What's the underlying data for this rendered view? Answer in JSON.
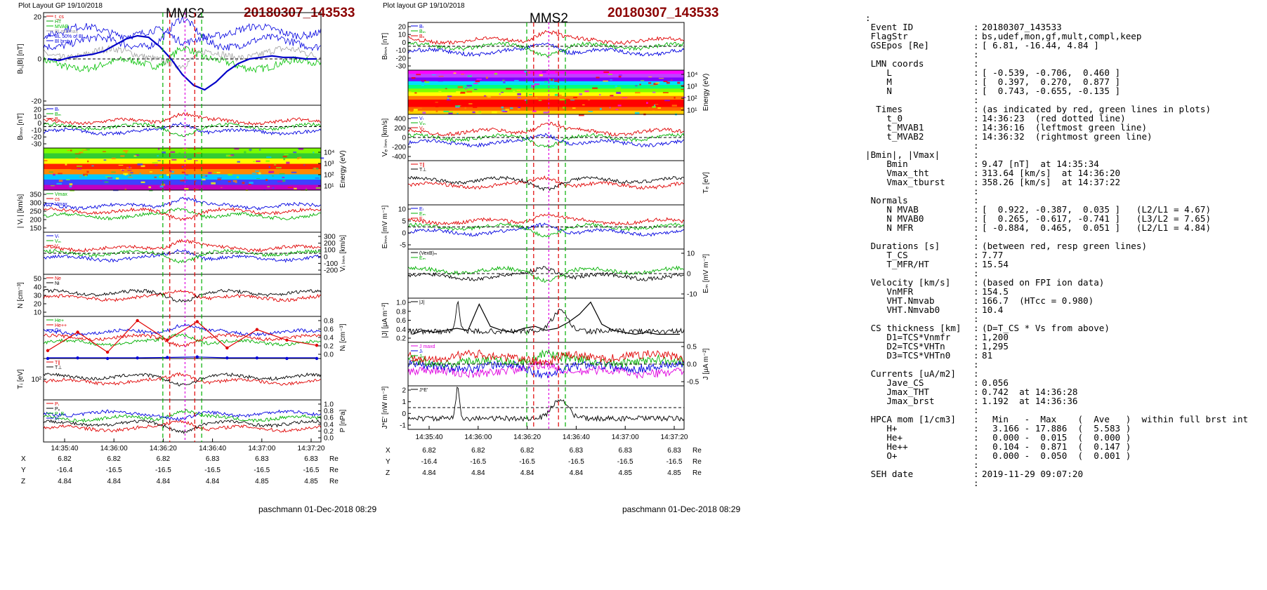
{
  "left_figure": {
    "header": "Plot Layout GP 19/10/2018",
    "spacecraft": "MMS2",
    "event": "20180307_143533",
    "footer": "paschmann 01-Dec-2018 08:29",
    "panels": [
      {
        "id": "bl",
        "ylabel": "Bₗ,|B| [nT]",
        "side": "left",
        "ticks": [
          "20",
          "0",
          "-20"
        ],
        "legend": [
          "t_cs",
          "HT",
          "MVAB",
          "BLminmax",
          "BL 50% of BL",
          "Bl brst"
        ],
        "legend_colors": [
          "#e00000",
          "#00a000",
          "#00c000",
          "#a0a0a0",
          "#0000e0",
          "#0000e0"
        ]
      },
      {
        "id": "blmn",
        "ylabel": "Bₗₘₙ [nT]",
        "side": "left",
        "ticks": [
          "20",
          "10",
          "0",
          "-10",
          "-20",
          "-30"
        ],
        "legend": [
          "Bₗ",
          "Bₘ",
          "Bₙ"
        ],
        "legend_colors": [
          "#0000e0",
          "#00b000",
          "#e00000"
        ]
      },
      {
        "id": "ispec",
        "ylabel": "Energy (eV)",
        "side": "right",
        "ticks": [
          "10⁴",
          "10³",
          "10²",
          "10¹"
        ],
        "legend": [],
        "legend_colors": []
      },
      {
        "id": "vi",
        "ylabel": "| Vᵢ | [km/s]",
        "side": "left",
        "ticks": [
          "350",
          "300",
          "250",
          "200",
          "150"
        ],
        "legend": [
          "Vmax",
          "cs",
          "Vmax"
        ],
        "legend_colors": [
          "#00b000",
          "#e00000",
          "#0000e0"
        ]
      },
      {
        "id": "vilmn",
        "ylabel": "Vᵢ ₗₘₙ [km/s]",
        "side": "right",
        "ticks": [
          "300",
          "200",
          "100",
          "0",
          "-100",
          "-200"
        ],
        "legend": [
          "Vₗ",
          "Vₘ",
          "Vₙ"
        ],
        "legend_colors": [
          "#0000e0",
          "#00b000",
          "#e00000"
        ]
      },
      {
        "id": "n",
        "ylabel": "N [cm⁻³]",
        "side": "left",
        "ticks": [
          "50",
          "40",
          "30",
          "20",
          "10"
        ],
        "legend": [
          "Ne",
          "Ni"
        ],
        "legend_colors": [
          "#e00000",
          "#000000"
        ]
      },
      {
        "id": "ni",
        "ylabel": "Nᵢ [cm⁻³]",
        "side": "right",
        "ticks": [
          "0.8",
          "0.6",
          "0.4",
          "0.2",
          "0.0"
        ],
        "legend": [
          "He+",
          "He++",
          "O+"
        ],
        "legend_colors": [
          "#00b000",
          "#e00000",
          "#0000e0"
        ]
      },
      {
        "id": "ti",
        "ylabel": "Tᵢ [eV]",
        "side": "left",
        "ticks": [
          "10²"
        ],
        "legend": [
          "T∥",
          "T⊥"
        ],
        "legend_colors": [
          "#e00000",
          "#000000"
        ]
      },
      {
        "id": "p",
        "ylabel": "P [nPa]",
        "side": "right",
        "ticks": [
          "1.0",
          "0.8",
          "0.6",
          "0.4",
          "0.2",
          "0.0"
        ],
        "legend": [
          "Pᵢ",
          "Pₑ",
          "P_B",
          "Pₜ"
        ],
        "legend_colors": [
          "#e00000",
          "#000000",
          "#00b000",
          "#0000e0"
        ]
      }
    ],
    "time_ticks": [
      "14:35:40",
      "14:36:00",
      "14:36:20",
      "14:36:40",
      "14:37:00",
      "14:37:20"
    ],
    "ephemeris": {
      "rows": [
        {
          "label": "X",
          "values": [
            "6.82",
            "6.82",
            "6.82",
            "6.83",
            "6.83",
            "6.83"
          ],
          "unit": "Re"
        },
        {
          "label": "Y",
          "values": [
            "-16.4",
            "-16.5",
            "-16.5",
            "-16.5",
            "-16.5",
            "-16.5"
          ],
          "unit": "Re"
        },
        {
          "label": "Z",
          "values": [
            "4.84",
            "4.84",
            "4.84",
            "4.84",
            "4.85",
            "4.85"
          ],
          "unit": "Re"
        }
      ]
    }
  },
  "right_figure": {
    "header": "Plot layout GP 19/10/2018",
    "spacecraft": "MMS2",
    "event": "20180307_143533",
    "footer": "paschmann 01-Dec-2018 08:29",
    "panels": [
      {
        "id": "blmn2",
        "ylabel": "Bₗₘₙ [nT]",
        "side": "left",
        "ticks": [
          "20",
          "10",
          "0",
          "-10",
          "-20",
          "-30"
        ],
        "legend": [
          "Bₗ",
          "Bₘ",
          "Bₙ"
        ],
        "legend_colors": [
          "#0000e0",
          "#00b000",
          "#e00000"
        ]
      },
      {
        "id": "espec",
        "ylabel": "Energy (eV)",
        "side": "right",
        "ticks": [
          "10⁴",
          "10³",
          "10²",
          "10¹"
        ],
        "legend": [],
        "legend_colors": []
      },
      {
        "id": "ve",
        "ylabel": "Vₑ ₗₘₙ [km/s]",
        "side": "left",
        "ticks": [
          "400",
          "200",
          "0",
          "-200",
          "-400"
        ],
        "legend": [
          "Vₗ",
          "Vₘ",
          "Vₙ"
        ],
        "legend_colors": [
          "#0000e0",
          "#00b000",
          "#e00000"
        ]
      },
      {
        "id": "te",
        "ylabel": "Tₑ [eV]",
        "side": "right",
        "ticks": [],
        "legend": [
          "T∥",
          "T⊥"
        ],
        "legend_colors": [
          "#e00000",
          "#000000"
        ]
      },
      {
        "id": "e",
        "ylabel": "Eₗₘₙ [mV m⁻¹]",
        "side": "left",
        "ticks": [
          "10",
          "5",
          "0",
          "-5"
        ],
        "legend": [
          "Eₗ",
          "Eₘ",
          "Eₙ"
        ],
        "legend_colors": [
          "#0000e0",
          "#00b000",
          "#e00000"
        ]
      },
      {
        "id": "em",
        "ylabel": "Eₘ [mV m⁻²]",
        "side": "right",
        "ticks": [
          "10",
          "0",
          "-10"
        ],
        "legend": [
          "(VexB)ₘ",
          "Eₘ"
        ],
        "legend_colors": [
          "#000000",
          "#00b000"
        ]
      },
      {
        "id": "j",
        "ylabel": "|J| [μA m⁻²]",
        "side": "left",
        "ticks": [
          "1.0",
          "0.8",
          "0.6",
          "0.4",
          "0.2"
        ],
        "legend": [
          "|J|"
        ],
        "legend_colors": [
          "#000000"
        ]
      },
      {
        "id": "jlmn",
        "ylabel": "J [μA m⁻²]",
        "side": "right",
        "ticks": [
          "0.5",
          "0.0",
          "-0.5"
        ],
        "legend": [
          "J maxd",
          "Jₗ",
          "Jₘ",
          "Jₙ"
        ],
        "legend_colors": [
          "#e000e0",
          "#0000e0",
          "#00b000",
          "#e00000"
        ]
      },
      {
        "id": "je",
        "ylabel": "J*E' [nW m⁻³]",
        "side": "left",
        "ticks": [
          "2",
          "1",
          "0",
          "-1"
        ],
        "legend": [
          "J*E'"
        ],
        "legend_colors": [
          "#000000"
        ]
      }
    ],
    "time_ticks": [
      "14:35:40",
      "14:36:00",
      "14:36:20",
      "14:36:40",
      "14:37:00",
      "14:37:20"
    ],
    "ephemeris": {
      "rows": [
        {
          "label": "X",
          "values": [
            "6.82",
            "6.82",
            "6.82",
            "6.83",
            "6.83",
            "6.83"
          ],
          "unit": "Re"
        },
        {
          "label": "Y",
          "values": [
            "-16.4",
            "-16.5",
            "-16.5",
            "-16.5",
            "-16.5",
            "-16.5"
          ],
          "unit": "Re"
        },
        {
          "label": "Z",
          "values": [
            "4.84",
            "4.84",
            "4.84",
            "4.84",
            "4.85",
            "4.85"
          ],
          "unit": "Re"
        }
      ]
    }
  },
  "event_table": {
    "rows": [
      {
        "label": ":",
        "sep": "",
        "value": ""
      },
      {
        "label": " Event ID",
        "sep": ":",
        "value": "20180307_143533"
      },
      {
        "label": " FlagStr",
        "sep": ":",
        "value": "bs,udef,mon,gf,mult,compl,keep"
      },
      {
        "label": " GSEpos [Re]",
        "sep": ":",
        "value": "[ 6.81, -16.44, 4.84 ]"
      },
      {
        "label": "",
        "sep": ":",
        "value": ""
      },
      {
        "label": " LMN coords",
        "sep": ":",
        "value": ""
      },
      {
        "label": "    L",
        "sep": ":",
        "value": "[ -0.539, -0.706,  0.460 ]"
      },
      {
        "label": "    M",
        "sep": ":",
        "value": "[  0.397,  0.270,  0.877 ]"
      },
      {
        "label": "    N",
        "sep": ":",
        "value": "[  0.743, -0.655, -0.135 ]"
      },
      {
        "label": "",
        "sep": ":",
        "value": ""
      },
      {
        "label": "  Times",
        "sep": ":",
        "value": "(as indicated by red, green lines in plots)"
      },
      {
        "label": "    t_0",
        "sep": ":",
        "value": "14:36:23  (red dotted line)"
      },
      {
        "label": "    t_MVAB1",
        "sep": ":",
        "value": "14:36:16  (leftmost green line)"
      },
      {
        "label": "    t_MVAB2",
        "sep": ":",
        "value": "14:36:32  (rightmost green line)"
      },
      {
        "label": "",
        "sep": ":",
        "value": ""
      },
      {
        "label": "|Bmin|, |Vmax|",
        "sep": ":",
        "value": ""
      },
      {
        "label": "    Bmin",
        "sep": ":",
        "value": "9.47 [nT]  at 14:35:34"
      },
      {
        "label": "    Vmax_tht",
        "sep": ":",
        "value": "313.64 [km/s]  at 14:36:20"
      },
      {
        "label": "    Vmax_tburst",
        "sep": ":",
        "value": "358.26 [km/s]  at 14:37:22"
      },
      {
        "label": "",
        "sep": ":",
        "value": ""
      },
      {
        "label": " Normals",
        "sep": ":",
        "value": ""
      },
      {
        "label": "    N MVAB",
        "sep": ":",
        "value": "[  0.922, -0.387,  0.035 ]   (L2/L1 = 4.67)"
      },
      {
        "label": "    N MVAB0",
        "sep": ":",
        "value": "[  0.265, -0.617, -0.741 ]   (L3/L2 = 7.65)"
      },
      {
        "label": "    N MFR",
        "sep": ":",
        "value": "[ -0.884,  0.465,  0.051 ]   (L2/L1 = 4.84)"
      },
      {
        "label": "",
        "sep": ":",
        "value": ""
      },
      {
        "label": " Durations [s]",
        "sep": ":",
        "value": "(between red, resp green lines)"
      },
      {
        "label": "    T_CS",
        "sep": ":",
        "value": "7.77"
      },
      {
        "label": "    T_MFR/HT",
        "sep": ":",
        "value": "15.54"
      },
      {
        "label": "",
        "sep": ":",
        "value": ""
      },
      {
        "label": " Velocity [km/s]",
        "sep": ":",
        "value": "(based on FPI ion data)"
      },
      {
        "label": "    VnMFR",
        "sep": ":",
        "value": "154.5"
      },
      {
        "label": "    VHT.Nmvab",
        "sep": ":",
        "value": "166.7  (HTcc = 0.980)"
      },
      {
        "label": "    VHT.Nmvab0",
        "sep": ":",
        "value": "10.4"
      },
      {
        "label": "",
        "sep": ":",
        "value": ""
      },
      {
        "label": " CS thickness [km]",
        "sep": ":",
        "value": "(D=T_CS * Vs from above)"
      },
      {
        "label": "    D1=TCS*Vnmfr",
        "sep": ":",
        "value": "1,200"
      },
      {
        "label": "    D2=TCS*VHTn",
        "sep": ":",
        "value": "1,295"
      },
      {
        "label": "    D3=TCS*VHTn0",
        "sep": ":",
        "value": "81"
      },
      {
        "label": "",
        "sep": ":",
        "value": ""
      },
      {
        "label": " Currents [uA/m2]",
        "sep": ":",
        "value": ""
      },
      {
        "label": "    Jave_CS",
        "sep": ":",
        "value": "0.056"
      },
      {
        "label": "    Jmax_THT",
        "sep": ":",
        "value": "0.742  at 14:36:28"
      },
      {
        "label": "    Jmax_brst",
        "sep": ":",
        "value": "1.192  at 14:36:36"
      },
      {
        "label": "",
        "sep": ":",
        "value": ""
      },
      {
        "label": " HPCA mom [1/cm3]",
        "sep": ":",
        "value": "  Min   -  Max    (  Ave   )  within full brst int"
      },
      {
        "label": "    H+",
        "sep": ":",
        "value": "  3.166 - 17.886  (  5.583 )"
      },
      {
        "label": "    He+",
        "sep": ":",
        "value": "  0.000 -  0.015  (  0.000 )"
      },
      {
        "label": "    He++",
        "sep": ":",
        "value": "  0.104 -  0.871  (  0.147 )"
      },
      {
        "label": "    O+",
        "sep": ":",
        "value": "  0.000 -  0.050  (  0.001 )"
      },
      {
        "label": "",
        "sep": ":",
        "value": ""
      },
      {
        "label": " SEH date",
        "sep": ":",
        "value": "2019-11-29 09:07:20"
      },
      {
        "label": "",
        "sep": ":",
        "value": ""
      }
    ]
  },
  "chart_data": [
    {
      "type": "line",
      "figure": "left",
      "time_ticks": [
        "14:35:40",
        "14:36:00",
        "14:36:20",
        "14:36:40",
        "14:37:00",
        "14:37:20"
      ],
      "marker_times": {
        "t_0": "14:36:23",
        "t_MVAB1": "14:36:16",
        "t_MVAB2": "14:36:32"
      },
      "panels": [
        {
          "id": "bl",
          "ylim": [
            -30,
            30
          ],
          "series": [
            {
              "name": "Bl brst",
              "color": "#0000c8",
              "values": [
                0,
                -1,
                1,
                2,
                3,
                5,
                9,
                13,
                15,
                14,
                8,
                0,
                -10,
                -17,
                -20,
                -15,
                -8,
                -3,
                0,
                1,
                2,
                1,
                1,
                0,
                0
              ]
            }
          ]
        },
        {
          "id": "ni",
          "ylim": [
            0,
            0.8
          ],
          "x": [
            "14:35:36",
            "14:35:44",
            "14:35:54",
            "14:36:04",
            "14:36:14",
            "14:36:24",
            "14:36:34",
            "14:36:44",
            "14:36:54",
            "14:37:04"
          ],
          "series": [
            {
              "name": "He++",
              "color": "#e00000",
              "values": [
                0.15,
                0.5,
                0.12,
                0.72,
                0.35,
                0.7,
                0.2,
                0.55,
                0.35,
                0.25
              ]
            },
            {
              "name": "O+",
              "color": "#0000e0",
              "values": [
                0.0,
                0.01,
                0.0,
                0.01,
                0.02,
                0.03,
                0.01,
                0.01,
                0.0,
                0.0
              ]
            }
          ]
        }
      ]
    },
    {
      "type": "line",
      "figure": "right",
      "time_ticks": [
        "14:35:40",
        "14:36:00",
        "14:36:20",
        "14:36:40",
        "14:37:00",
        "14:37:20"
      ],
      "marker_times": {
        "t_0": "14:36:23",
        "t_MVAB1": "14:36:16",
        "t_MVAB2": "14:36:32"
      },
      "panels": [
        {
          "id": "j",
          "ylim": [
            0,
            1.1
          ],
          "series": [
            {
              "name": "|J|",
              "color": "#000000",
              "values": [
                0.2,
                0.3,
                0.25,
                0.3,
                0.35,
                0.3,
                0.95,
                0.4,
                0.3,
                0.25,
                0.35,
                0.4,
                0.3,
                0.35,
                0.5,
                0.7,
                1.0,
                0.45,
                0.3,
                0.25,
                0.2,
                0.25,
                0.2,
                0.2,
                0.2
              ]
            }
          ]
        }
      ]
    }
  ]
}
